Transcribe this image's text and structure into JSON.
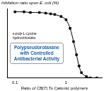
{
  "chart_data": {
    "type": "line",
    "y_label": "Inhibition ratio upon E. coli (%)",
    "x_label": "Ratio of CB[7] To Cationic polymers",
    "x": [
      0.1,
      0.15,
      0.2,
      0.3,
      0.4,
      0.5,
      0.6,
      0.8,
      1,
      1.2,
      1.4,
      1.6,
      1.8,
      2,
      2.5,
      3,
      4
    ],
    "values": [
      100,
      100,
      99,
      99,
      98,
      97,
      96,
      93,
      88,
      75,
      55,
      35,
      18,
      8,
      2,
      0,
      0
    ],
    "color": "#000000",
    "marker": "square",
    "log": "x",
    "xlim": [
      0.07,
      5
    ],
    "xticks": [
      0.1,
      1
    ],
    "ylim": [
      0,
      105
    ],
    "grid": false,
    "tick_labels": "x",
    "annotations": [
      "ε-poly-L-Lysine hydrochlorides",
      "Polypseudorotaxane with Controlled Antibacterial Activity"
    ]
  }
}
